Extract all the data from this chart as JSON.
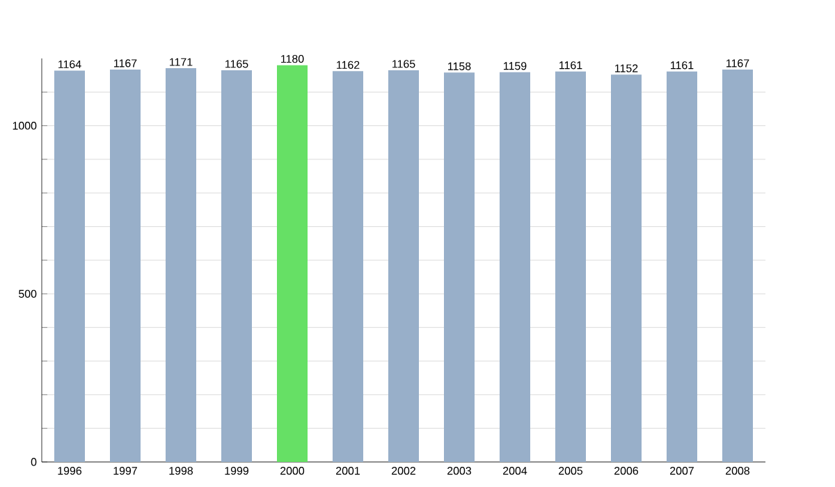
{
  "chart_data": {
    "type": "bar",
    "categories": [
      "1996",
      "1997",
      "1998",
      "1999",
      "2000",
      "2001",
      "2002",
      "2003",
      "2004",
      "2005",
      "2006",
      "2007",
      "2008"
    ],
    "values": [
      1164,
      1167,
      1171,
      1165,
      1180,
      1162,
      1165,
      1158,
      1159,
      1161,
      1152,
      1161,
      1167
    ],
    "colors": [
      "#98afc9",
      "#98afc9",
      "#98afc9",
      "#98afc9",
      "#66e065",
      "#98afc9",
      "#98afc9",
      "#98afc9",
      "#98afc9",
      "#98afc9",
      "#98afc9",
      "#98afc9",
      "#98afc9"
    ],
    "data_labels": true,
    "ylim": [
      0,
      1200
    ],
    "yticks": [
      0,
      {
        "value": 100,
        "label": null
      },
      {
        "value": 200,
        "label": null
      },
      {
        "value": 300,
        "label": null
      },
      {
        "value": 400,
        "label": null
      },
      500,
      {
        "value": 600,
        "label": null
      },
      {
        "value": 700,
        "label": null
      },
      {
        "value": 800,
        "label": null
      },
      {
        "value": 900,
        "label": null
      },
      1000,
      {
        "value": 1100,
        "label": null
      }
    ],
    "grid": "y"
  }
}
